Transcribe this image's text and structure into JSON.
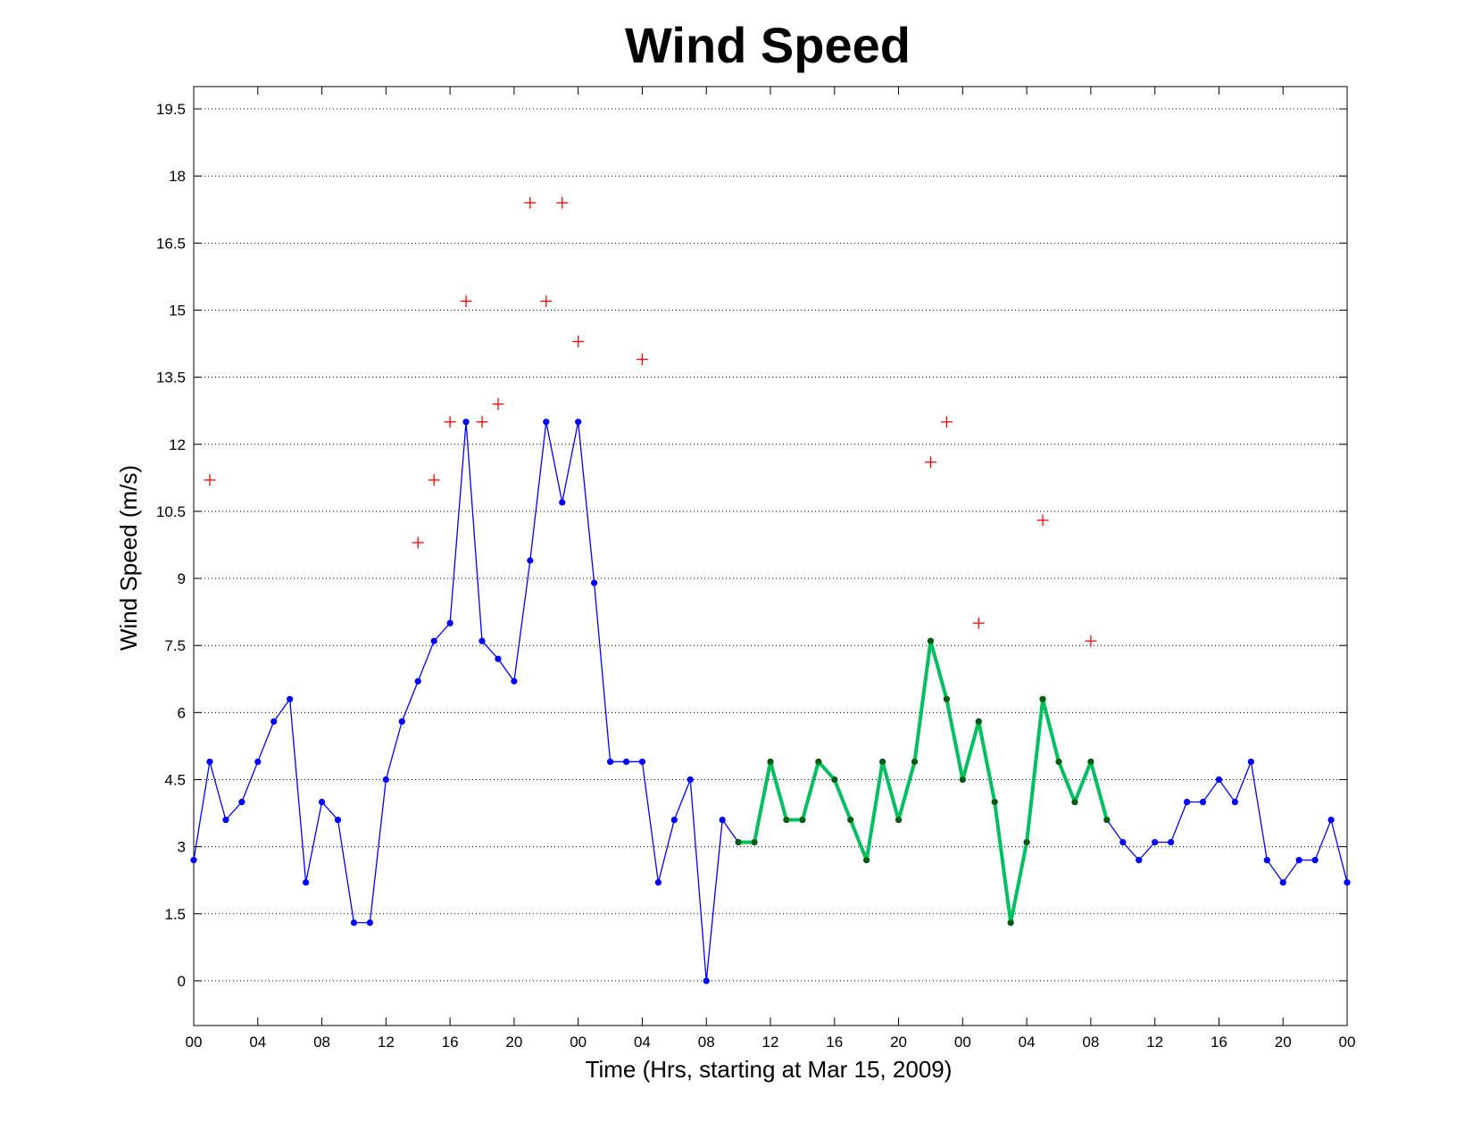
{
  "chart_data": {
    "type": "line",
    "title": "Wind Speed",
    "xlabel": "Time (Hrs, starting at Mar 15, 2009)",
    "ylabel": "Wind Speed (m/s)",
    "xlim": [
      0,
      72
    ],
    "ylim": [
      -1,
      20
    ],
    "x_ticks": [
      {
        "x": 0,
        "label": "00"
      },
      {
        "x": 4,
        "label": "04"
      },
      {
        "x": 8,
        "label": "08"
      },
      {
        "x": 12,
        "label": "12"
      },
      {
        "x": 16,
        "label": "16"
      },
      {
        "x": 20,
        "label": "20"
      },
      {
        "x": 24,
        "label": "00"
      },
      {
        "x": 28,
        "label": "04"
      },
      {
        "x": 32,
        "label": "08"
      },
      {
        "x": 36,
        "label": "12"
      },
      {
        "x": 40,
        "label": "16"
      },
      {
        "x": 44,
        "label": "20"
      },
      {
        "x": 48,
        "label": "00"
      },
      {
        "x": 52,
        "label": "04"
      },
      {
        "x": 56,
        "label": "08"
      },
      {
        "x": 60,
        "label": "12"
      },
      {
        "x": 64,
        "label": "16"
      },
      {
        "x": 68,
        "label": "20"
      },
      {
        "x": 72,
        "label": "00"
      }
    ],
    "y_ticks": [
      0,
      1.5,
      3,
      4.5,
      6,
      7.5,
      9,
      10.5,
      12,
      13.5,
      15,
      16.5,
      18,
      19.5
    ],
    "y_tick_labels": [
      "0",
      "1.5",
      "3",
      "4.5",
      "6",
      "7.5",
      "9",
      "10.5",
      "12",
      "13.5",
      "15",
      "16.5",
      "18",
      "19.5"
    ],
    "grid": "horizontal-dotted",
    "series": [
      {
        "style": "blue-line-dots",
        "color": "#0000ff",
        "x": [
          0,
          1,
          2,
          3,
          4,
          5,
          6,
          7,
          8,
          9,
          10,
          11,
          12,
          13,
          14,
          15,
          16,
          17,
          18,
          19,
          20,
          21,
          22,
          23,
          24,
          25,
          26,
          27,
          28,
          29,
          30,
          31,
          32,
          33,
          34,
          35,
          36,
          37,
          38,
          39,
          40,
          41,
          42,
          43,
          44,
          45,
          46,
          47,
          48,
          49,
          50,
          51,
          52,
          53,
          54,
          55,
          56,
          57,
          58,
          59,
          60,
          61,
          62,
          63,
          64,
          65,
          66,
          67,
          68,
          69,
          70,
          71,
          72
        ],
        "values": [
          2.7,
          4.9,
          3.6,
          4.0,
          4.9,
          5.8,
          6.3,
          2.2,
          4.0,
          3.6,
          1.3,
          1.3,
          4.5,
          5.8,
          6.7,
          7.6,
          8.0,
          12.5,
          7.6,
          7.2,
          6.7,
          9.4,
          12.5,
          10.7,
          12.5,
          8.9,
          4.9,
          4.9,
          4.9,
          2.2,
          3.6,
          4.5,
          0.0,
          3.6,
          3.1,
          3.1,
          4.9,
          3.6,
          3.6,
          4.9,
          4.5,
          3.6,
          2.7,
          4.9,
          3.6,
          4.9,
          7.6,
          6.3,
          4.5,
          5.8,
          4.0,
          1.3,
          3.1,
          6.3,
          4.9,
          4.0,
          4.9,
          3.6,
          3.1,
          2.7,
          3.1,
          3.1,
          4.0,
          4.0,
          4.5,
          4.0,
          4.9,
          2.7,
          2.2,
          2.7,
          2.7,
          3.6,
          2.2
        ]
      },
      {
        "style": "green-thick-line",
        "color": "#00c060",
        "marker_color": "#006000",
        "x": [
          34,
          35,
          36,
          37,
          38,
          39,
          40,
          41,
          42,
          43,
          44,
          45,
          46,
          47,
          48,
          49,
          50,
          51,
          52,
          53,
          54,
          55,
          56,
          57
        ],
        "values": [
          3.1,
          3.1,
          4.9,
          3.6,
          3.6,
          4.9,
          4.5,
          3.6,
          2.7,
          4.9,
          3.6,
          4.9,
          7.6,
          6.3,
          4.5,
          5.8,
          4.0,
          1.3,
          3.1,
          6.3,
          4.9,
          4.0,
          4.9,
          3.6
        ]
      },
      {
        "style": "red-plus-markers",
        "color": "#ff0000",
        "x": [
          1,
          14,
          15,
          16,
          17,
          18,
          19,
          21,
          22,
          23,
          24,
          28,
          46,
          47,
          49,
          53,
          56
        ],
        "values": [
          11.2,
          9.8,
          11.2,
          12.5,
          15.2,
          12.5,
          12.9,
          17.4,
          15.2,
          17.4,
          14.3,
          13.9,
          11.6,
          12.5,
          8.0,
          10.3,
          7.6
        ]
      }
    ]
  }
}
